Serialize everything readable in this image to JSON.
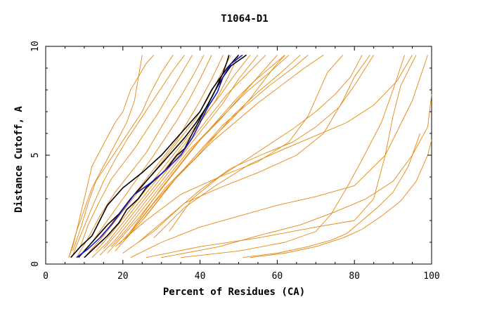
{
  "chart_data": {
    "type": "line",
    "title": "T1064-D1",
    "xlabel": "Percent of Residues (CA)",
    "ylabel": "Distance Cutoff, A",
    "xlim": [
      0,
      100
    ],
    "ylim": [
      0,
      10
    ],
    "x_ticks": [
      "0",
      "20",
      "40",
      "60",
      "80",
      "100"
    ],
    "y_ticks": [
      "0",
      "5",
      "10"
    ],
    "grid": false,
    "legend": "none",
    "colors": {
      "model_curves": "#e8870e",
      "highlight_black": "#000000",
      "highlight_blue": "#1a1acd"
    },
    "series": [
      {
        "group": "highlight",
        "color": "#000000",
        "x": [
          6.5,
          9,
          12,
          14,
          16,
          20,
          25,
          30,
          35,
          40,
          43,
          47,
          50
        ],
        "y": [
          0.3,
          0.8,
          1.3,
          2.0,
          2.7,
          3.5,
          4.2,
          5.0,
          6.0,
          7.0,
          8.0,
          9.0,
          9.6
        ]
      },
      {
        "group": "highlight",
        "color": "#000000",
        "x": [
          8.5,
          11,
          13.5,
          16,
          19,
          22,
          24,
          28,
          32,
          36,
          39,
          42,
          44,
          46,
          47,
          47.5
        ],
        "y": [
          0.3,
          0.8,
          1.3,
          1.8,
          2.3,
          3.0,
          3.4,
          4.2,
          5.0,
          5.8,
          6.5,
          7.3,
          8.0,
          8.8,
          9.3,
          9.6
        ]
      },
      {
        "group": "highlight",
        "color": "#000000",
        "x": [
          10,
          13,
          16,
          19,
          21,
          24,
          26,
          31,
          34,
          36,
          38,
          41,
          44,
          46,
          48,
          52
        ],
        "y": [
          0.3,
          0.8,
          1.3,
          1.9,
          2.5,
          3.0,
          3.5,
          4.3,
          5.0,
          5.3,
          6.0,
          7.0,
          8.0,
          8.6,
          9.1,
          9.6
        ]
      },
      {
        "group": "highlight",
        "color": "#1a1acd",
        "x": [
          8,
          11,
          14,
          17,
          20,
          23,
          27,
          31,
          35,
          38,
          40,
          42,
          44.5,
          46,
          48,
          51
        ],
        "y": [
          0.3,
          0.7,
          1.2,
          1.8,
          2.5,
          3.2,
          3.7,
          4.3,
          5.0,
          5.8,
          6.5,
          7.2,
          7.9,
          8.6,
          9.2,
          9.6
        ]
      },
      {
        "group": "model",
        "color": "#e8870e",
        "x": [
          22,
          30,
          40,
          50,
          60,
          70,
          80,
          88,
          95,
          99
        ],
        "y": [
          0.3,
          1.0,
          1.7,
          2.2,
          2.7,
          3.1,
          3.6,
          5.0,
          7.5,
          9.6
        ]
      },
      {
        "group": "model",
        "color": "#e8870e",
        "x": [
          26,
          40,
          55,
          70,
          80,
          85,
          88,
          90,
          92,
          96
        ],
        "y": [
          0.3,
          0.8,
          1.2,
          1.7,
          2.0,
          3.0,
          5.0,
          6.8,
          8.2,
          9.6
        ]
      },
      {
        "group": "model",
        "color": "#e8870e",
        "x": [
          35,
          50,
          62,
          70,
          74,
          78,
          82,
          87,
          90,
          93
        ],
        "y": [
          0.3,
          0.6,
          1.0,
          1.5,
          2.3,
          3.5,
          4.8,
          6.5,
          8.0,
          9.6
        ]
      },
      {
        "group": "model",
        "color": "#e8870e",
        "x": [
          51,
          60,
          68,
          74,
          78,
          82,
          86,
          90,
          94,
          97
        ],
        "y": [
          0.3,
          0.5,
          0.8,
          1.1,
          1.4,
          2.0,
          2.6,
          3.3,
          4.5,
          6.0
        ]
      },
      {
        "group": "model",
        "color": "#e8870e",
        "x": [
          53,
          62,
          70,
          77,
          82,
          87,
          92,
          96,
          99,
          100
        ],
        "y": [
          0.3,
          0.5,
          0.8,
          1.2,
          1.6,
          2.2,
          2.9,
          3.8,
          5.0,
          5.7
        ]
      },
      {
        "group": "model",
        "color": "#e8870e",
        "x": [
          30,
          45,
          55,
          66,
          75,
          83,
          90,
          95,
          99,
          100
        ],
        "y": [
          0.3,
          0.8,
          1.3,
          1.8,
          2.4,
          3.0,
          3.8,
          5.0,
          6.3,
          7.8
        ]
      },
      {
        "group": "model",
        "color": "#e8870e",
        "x": [
          20,
          28,
          36,
          45,
          55,
          65,
          72,
          77,
          80,
          84
        ],
        "y": [
          0.5,
          1.5,
          2.8,
          3.5,
          4.2,
          5.0,
          6.0,
          7.5,
          8.6,
          9.6
        ]
      },
      {
        "group": "model",
        "color": "#e8870e",
        "x": [
          18,
          26,
          35,
          45,
          55,
          63,
          68,
          71,
          73,
          77
        ],
        "y": [
          0.8,
          2.0,
          3.2,
          4.0,
          4.7,
          5.6,
          6.8,
          8.0,
          8.8,
          9.6
        ]
      },
      {
        "group": "model",
        "color": "#e8870e",
        "x": [
          24,
          32,
          40,
          48,
          57,
          64,
          70,
          76,
          80,
          85
        ],
        "y": [
          1.0,
          2.2,
          3.4,
          4.4,
          5.1,
          5.6,
          6.3,
          7.2,
          8.2,
          9.6
        ]
      },
      {
        "group": "model",
        "color": "#e8870e",
        "x": [
          28,
          36,
          44,
          53,
          62,
          70,
          78,
          85,
          91,
          95
        ],
        "y": [
          1.2,
          2.6,
          3.6,
          4.6,
          5.3,
          5.9,
          6.5,
          7.3,
          8.4,
          9.6
        ]
      },
      {
        "group": "model",
        "color": "#e8870e",
        "x": [
          32,
          38,
          45,
          52,
          58,
          64,
          70,
          75,
          79,
          82
        ],
        "y": [
          1.5,
          3.0,
          4.0,
          4.8,
          5.5,
          6.2,
          7.0,
          7.8,
          8.6,
          9.6
        ]
      },
      {
        "group": "model",
        "color": "#e8870e",
        "x": [
          6,
          8,
          10,
          12,
          15,
          18,
          20,
          22,
          24,
          26,
          28
        ],
        "y": [
          0.3,
          1.5,
          3.0,
          4.5,
          5.5,
          6.5,
          7.0,
          8.0,
          8.6,
          9.2,
          9.6
        ]
      },
      {
        "group": "model",
        "color": "#e8870e",
        "x": [
          7,
          9,
          12,
          15,
          18,
          21,
          24,
          27,
          30,
          33,
          36
        ],
        "y": [
          0.4,
          1.3,
          2.6,
          3.8,
          4.8,
          5.7,
          6.5,
          7.3,
          8.1,
          8.9,
          9.6
        ]
      },
      {
        "group": "model",
        "color": "#e8870e",
        "x": [
          8,
          11,
          14,
          18,
          22,
          26,
          29,
          32,
          35,
          38,
          41
        ],
        "y": [
          0.3,
          1.2,
          2.2,
          3.3,
          4.2,
          5.1,
          6.0,
          6.9,
          7.7,
          8.6,
          9.6
        ]
      },
      {
        "group": "model",
        "color": "#e8870e",
        "x": [
          9,
          12,
          16,
          20,
          24,
          28,
          31,
          34,
          37,
          40,
          43
        ],
        "y": [
          0.4,
          1.0,
          2.0,
          3.0,
          4.0,
          5.0,
          5.8,
          6.6,
          7.5,
          8.5,
          9.6
        ]
      },
      {
        "group": "model",
        "color": "#e8870e",
        "x": [
          10,
          14,
          18,
          22,
          26,
          30,
          34,
          37,
          40,
          43,
          46
        ],
        "y": [
          0.3,
          1.1,
          2.1,
          3.0,
          3.9,
          4.8,
          5.7,
          6.6,
          7.5,
          8.5,
          9.6
        ]
      },
      {
        "group": "model",
        "color": "#e8870e",
        "x": [
          11,
          15,
          19,
          23,
          27,
          31,
          35,
          39,
          42,
          45,
          48
        ],
        "y": [
          0.5,
          1.3,
          2.2,
          3.1,
          4.0,
          4.9,
          5.8,
          6.7,
          7.6,
          8.6,
          9.6
        ]
      },
      {
        "group": "model",
        "color": "#e8870e",
        "x": [
          12,
          16,
          20,
          24,
          28,
          32,
          36,
          40,
          44,
          47,
          50
        ],
        "y": [
          0.3,
          1.0,
          1.9,
          2.8,
          3.7,
          4.6,
          5.5,
          6.5,
          7.5,
          8.5,
          9.6
        ]
      },
      {
        "group": "model",
        "color": "#e8870e",
        "x": [
          13,
          17,
          21,
          25,
          29,
          33,
          37,
          41,
          45,
          49,
          53
        ],
        "y": [
          0.6,
          1.4,
          2.3,
          3.2,
          4.1,
          5.0,
          5.9,
          6.8,
          7.7,
          8.7,
          9.6
        ]
      },
      {
        "group": "model",
        "color": "#e8870e",
        "x": [
          14,
          18,
          22,
          26,
          30,
          34,
          38,
          42,
          46,
          50,
          55
        ],
        "y": [
          0.4,
          1.1,
          2.0,
          2.9,
          3.8,
          4.7,
          5.6,
          6.5,
          7.4,
          8.5,
          9.6
        ]
      },
      {
        "group": "model",
        "color": "#e8870e",
        "x": [
          15,
          19,
          23,
          27,
          31,
          35,
          39,
          43,
          47,
          52,
          57
        ],
        "y": [
          0.7,
          1.5,
          2.4,
          3.3,
          4.2,
          5.1,
          6.0,
          6.9,
          7.8,
          8.7,
          9.6
        ]
      },
      {
        "group": "model",
        "color": "#e8870e",
        "x": [
          16,
          20,
          24,
          28,
          32,
          36,
          40,
          45,
          50,
          55,
          60
        ],
        "y": [
          0.5,
          1.3,
          2.1,
          3.0,
          3.9,
          4.8,
          5.7,
          6.6,
          7.6,
          8.6,
          9.6
        ]
      },
      {
        "group": "model",
        "color": "#e8870e",
        "x": [
          17,
          21,
          25,
          29,
          33,
          37,
          42,
          47,
          52,
          58,
          63
        ],
        "y": [
          0.8,
          1.6,
          2.5,
          3.4,
          4.3,
          5.2,
          6.1,
          7.0,
          7.9,
          8.8,
          9.6
        ]
      },
      {
        "group": "model",
        "color": "#e8870e",
        "x": [
          18,
          22,
          26,
          30,
          34,
          39,
          44,
          49,
          55,
          61,
          66
        ],
        "y": [
          0.6,
          1.4,
          2.2,
          3.1,
          4.0,
          4.9,
          5.9,
          6.9,
          7.9,
          8.8,
          9.6
        ]
      },
      {
        "group": "model",
        "color": "#e8870e",
        "x": [
          19,
          23,
          27,
          31,
          36,
          41,
          46,
          52,
          58,
          64,
          68
        ],
        "y": [
          0.9,
          1.7,
          2.6,
          3.5,
          4.4,
          5.4,
          6.4,
          7.3,
          8.2,
          9.0,
          9.6
        ]
      },
      {
        "group": "model",
        "color": "#e8870e",
        "x": [
          20,
          24,
          28,
          33,
          38,
          43,
          49,
          55,
          61,
          67,
          72
        ],
        "y": [
          1.0,
          1.9,
          2.8,
          3.8,
          4.7,
          5.6,
          6.5,
          7.4,
          8.2,
          9.0,
          9.6
        ]
      },
      {
        "group": "model",
        "color": "#e8870e",
        "x": [
          6,
          7,
          8,
          10,
          12,
          15,
          18,
          21,
          23,
          25
        ],
        "y": [
          0.3,
          0.8,
          1.5,
          2.5,
          3.5,
          4.5,
          5.5,
          6.5,
          7.5,
          9.6
        ]
      },
      {
        "group": "model",
        "color": "#e8870e",
        "x": [
          7,
          9,
          11,
          13,
          16,
          19,
          22,
          25,
          27,
          30,
          33
        ],
        "y": [
          0.6,
          1.6,
          2.8,
          3.8,
          4.6,
          5.4,
          6.2,
          7.0,
          7.8,
          8.8,
          9.6
        ]
      },
      {
        "group": "model",
        "color": "#e8870e",
        "x": [
          9,
          11,
          14,
          17,
          20,
          23,
          26,
          29,
          32,
          35,
          38
        ],
        "y": [
          0.8,
          1.8,
          2.9,
          3.9,
          4.6,
          5.3,
          6.1,
          6.9,
          7.8,
          8.7,
          9.6
        ]
      },
      {
        "group": "model",
        "color": "#e8870e",
        "x": [
          22,
          26,
          30,
          34,
          38,
          42,
          46,
          50,
          54,
          58,
          62
        ],
        "y": [
          1.5,
          2.5,
          3.5,
          4.4,
          5.3,
          6.1,
          6.9,
          7.7,
          8.4,
          9.0,
          9.6
        ]
      },
      {
        "group": "model",
        "color": "#e8870e",
        "x": [
          25,
          29,
          33,
          37,
          41,
          45,
          49,
          53,
          56,
          59,
          62
        ],
        "y": [
          2.0,
          2.9,
          3.8,
          4.6,
          5.4,
          6.1,
          6.8,
          7.6,
          8.3,
          9.0,
          9.6
        ]
      }
    ]
  }
}
